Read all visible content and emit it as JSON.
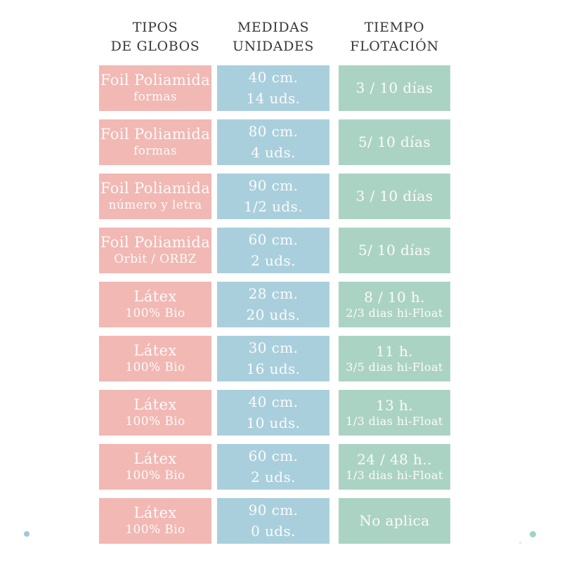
{
  "chart_data": {
    "type": "table",
    "columns": [
      {
        "line1": "TIPOS",
        "line2": "DE GLOBOS"
      },
      {
        "line1": "MEDIDAS",
        "line2": "UNIDADES"
      },
      {
        "line1": "TIEMPO",
        "line2": "FLOTACIÓN"
      }
    ],
    "rows": [
      {
        "tipo": "Foil Poliamida",
        "tipo_sub": "formas",
        "medida": "40 cm.",
        "unidades": "14 uds.",
        "tiempo": "3 / 10 días",
        "tiempo_sub": ""
      },
      {
        "tipo": "Foil Poliamida",
        "tipo_sub": "formas",
        "medida": "80 cm.",
        "unidades": "4 uds.",
        "tiempo": "5/ 10 días",
        "tiempo_sub": ""
      },
      {
        "tipo": "Foil Poliamida",
        "tipo_sub": "número y letra",
        "medida": "90 cm.",
        "unidades": "1/2 uds.",
        "tiempo": "3 / 10 días",
        "tiempo_sub": ""
      },
      {
        "tipo": "Foil Poliamida",
        "tipo_sub": "Orbit / ORBZ",
        "medida": "60 cm.",
        "unidades": "2 uds.",
        "tiempo": "5/ 10 días",
        "tiempo_sub": ""
      },
      {
        "tipo": "Látex",
        "tipo_sub": "100% Bio",
        "medida": "28 cm.",
        "unidades": "20 uds.",
        "tiempo": "8 / 10 h.",
        "tiempo_sub": "2/3 dias hi-Float"
      },
      {
        "tipo": "Látex",
        "tipo_sub": "100% Bio",
        "medida": "30 cm.",
        "unidades": "16 uds.",
        "tiempo": "11 h.",
        "tiempo_sub": "3/5 dias hi-Float"
      },
      {
        "tipo": "Látex",
        "tipo_sub": "100% Bio",
        "medida": "40 cm.",
        "unidades": "10 uds.",
        "tiempo": "13 h.",
        "tiempo_sub": "1/3 dias hi-Float"
      },
      {
        "tipo": "Látex",
        "tipo_sub": "100% Bio",
        "medida": "60 cm.",
        "unidades": "2 uds.",
        "tiempo": "24 / 48 h..",
        "tiempo_sub": "1/3 dias hi-Float"
      },
      {
        "tipo": "Látex",
        "tipo_sub": "100% Bio",
        "medida": "90 cm.",
        "unidades": "0 uds.",
        "tiempo": "No aplica",
        "tiempo_sub": ""
      }
    ]
  },
  "colors": {
    "pink": "#f1b8b4",
    "blue": "#a9cfdd",
    "green": "#abd3c3",
    "header_text": "#383838",
    "box_text": "#fffdfb",
    "dot_blue": "#a2c6dd",
    "dot_teal": "#a3d2cb"
  }
}
